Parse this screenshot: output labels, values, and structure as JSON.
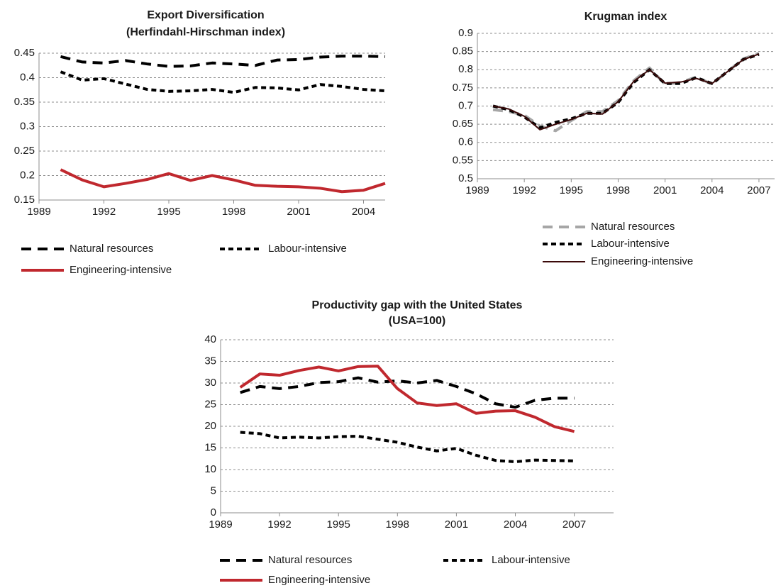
{
  "chart_data": [
    {
      "type": "line",
      "title": "Export Diversification",
      "subtitle": "(Herfindahl-Hirschman index)",
      "x": [
        1990,
        1991,
        1992,
        1993,
        1994,
        1995,
        1996,
        1997,
        1998,
        1999,
        2000,
        2001,
        2002,
        2003,
        2004,
        2005
      ],
      "xlim": [
        1989,
        2005
      ],
      "xticks": [
        1989,
        1992,
        1995,
        1998,
        2001,
        2004
      ],
      "ylim": [
        0.15,
        0.45
      ],
      "yticks": [
        0.15,
        0.2,
        0.25,
        0.3,
        0.35,
        0.4,
        0.45
      ],
      "grid": true,
      "series": [
        {
          "name": "Natural resources",
          "color": "#000000",
          "dash": "long",
          "values": [
            0.443,
            0.432,
            0.43,
            0.435,
            0.428,
            0.423,
            0.424,
            0.43,
            0.428,
            0.425,
            0.436,
            0.437,
            0.442,
            0.444,
            0.444,
            0.443
          ]
        },
        {
          "name": "Labour-intensive",
          "color": "#000000",
          "dash": "short",
          "values": [
            0.412,
            0.395,
            0.398,
            0.387,
            0.376,
            0.372,
            0.373,
            0.376,
            0.37,
            0.38,
            0.379,
            0.375,
            0.386,
            0.382,
            0.376,
            0.373
          ]
        },
        {
          "name": "Engineering-intensive",
          "color": "#c0282e",
          "dash": "solid",
          "values": [
            0.212,
            0.191,
            0.177,
            0.184,
            0.192,
            0.204,
            0.19,
            0.2,
            0.191,
            0.18,
            0.178,
            0.177,
            0.174,
            0.167,
            0.17,
            0.184
          ]
        }
      ]
    },
    {
      "type": "line",
      "title": "Krugman index",
      "x": [
        1990,
        1991,
        1992,
        1993,
        1994,
        1995,
        1996,
        1997,
        1998,
        1999,
        2000,
        2001,
        2002,
        2003,
        2004,
        2005,
        2006,
        2007
      ],
      "xlim": [
        1989,
        2008
      ],
      "xticks": [
        1989,
        1992,
        1995,
        1998,
        2001,
        2004,
        2007
      ],
      "ylim": [
        0.5,
        0.9
      ],
      "yticks": [
        0.5,
        0.55,
        0.6,
        0.65,
        0.7,
        0.75,
        0.8,
        0.85,
        0.9
      ],
      "grid": true,
      "series": [
        {
          "name": "Natural resources",
          "color": "#a6a6a6",
          "dash": "long",
          "values": [
            0.69,
            0.685,
            0.675,
            0.645,
            0.632,
            0.66,
            0.685,
            0.685,
            0.715,
            0.77,
            0.805,
            0.76,
            0.765,
            0.78,
            0.76,
            0.795,
            0.83,
            0.845
          ]
        },
        {
          "name": "Labour-intensive",
          "color": "#000000",
          "dash": "short",
          "values": [
            0.7,
            0.69,
            0.67,
            0.64,
            0.655,
            0.665,
            0.68,
            0.68,
            0.71,
            0.765,
            0.8,
            0.762,
            0.762,
            0.778,
            0.762,
            0.795,
            0.828,
            0.842
          ]
        },
        {
          "name": "Engineering-intensive",
          "color": "#3b0a0a",
          "dash": "solid",
          "values": [
            0.7,
            0.692,
            0.672,
            0.635,
            0.65,
            0.663,
            0.68,
            0.678,
            0.712,
            0.768,
            0.8,
            0.763,
            0.766,
            0.776,
            0.762,
            0.795,
            0.828,
            0.843
          ]
        }
      ]
    },
    {
      "type": "line",
      "title": "Productivity gap with the United States",
      "subtitle": "(USA=100)",
      "x": [
        1990,
        1991,
        1992,
        1993,
        1994,
        1995,
        1996,
        1997,
        1998,
        1999,
        2000,
        2001,
        2002,
        2003,
        2004,
        2005,
        2006,
        2007
      ],
      "xlim": [
        1989,
        2009
      ],
      "xticks": [
        1989,
        1992,
        1995,
        1998,
        2001,
        2004,
        2007
      ],
      "ylim": [
        0,
        40
      ],
      "yticks": [
        0,
        5,
        10,
        15,
        20,
        25,
        30,
        35,
        40
      ],
      "grid": true,
      "series": [
        {
          "name": "Natural resources",
          "color": "#000000",
          "dash": "long",
          "values": [
            27.8,
            29.2,
            28.7,
            29.2,
            30.1,
            30.3,
            31.2,
            30.2,
            30.5,
            30,
            30.6,
            29.2,
            27.5,
            25.2,
            24.4,
            26,
            26.5,
            26.5
          ]
        },
        {
          "name": "Labour-intensive",
          "color": "#000000",
          "dash": "short",
          "values": [
            18.6,
            18.3,
            17.3,
            17.5,
            17.3,
            17.6,
            17.7,
            17,
            16.3,
            15.2,
            14.3,
            14.9,
            13.3,
            12.1,
            11.8,
            12.2,
            12.1,
            12
          ]
        },
        {
          "name": "Engineering-intensive",
          "color": "#c0282e",
          "dash": "solid",
          "values": [
            29,
            32.1,
            31.8,
            32.9,
            33.7,
            32.8,
            33.8,
            33.9,
            28.7,
            25.4,
            24.8,
            25.2,
            23,
            23.5,
            23.6,
            22.1,
            19.9,
            18.8
          ]
        }
      ]
    }
  ]
}
